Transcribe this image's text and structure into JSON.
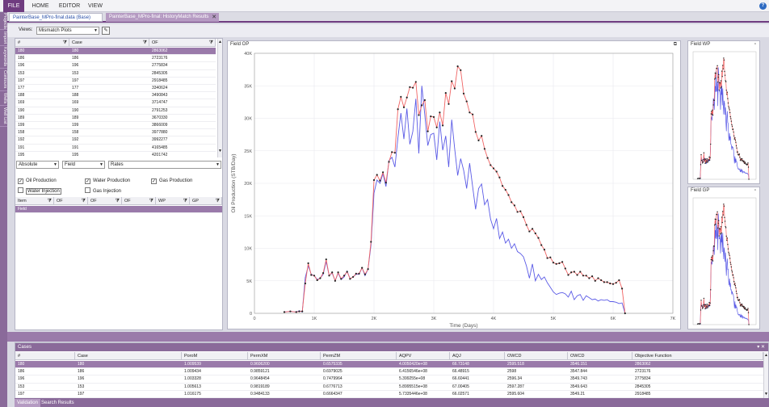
{
  "menu": {
    "items": [
      "FILE",
      "HOME",
      "EDITOR",
      "VIEW"
    ],
    "help_icon": "?"
  },
  "side_rail": {
    "tabs": [
      "Projects",
      "Import",
      "Keywords",
      "Contours",
      "Wells",
      "Well List"
    ]
  },
  "doc_tabs": [
    {
      "label": "PainterBase_MPro-final.data (Base)"
    },
    {
      "label": "PainterBase_MPro-final: HistoryMatch Results",
      "close": "✕"
    }
  ],
  "views": {
    "label": "Views:",
    "selected": "Mismatch Plots"
  },
  "case_grid": {
    "headers": [
      "#",
      "Case",
      "OF"
    ],
    "rows": [
      [
        "180",
        "180",
        "2863062"
      ],
      [
        "186",
        "186",
        "2723176"
      ],
      [
        "196",
        "196",
        "2775834"
      ],
      [
        "153",
        "153",
        "2845305"
      ],
      [
        "197",
        "197",
        "2918485"
      ],
      [
        "177",
        "177",
        "3340624"
      ],
      [
        "188",
        "188",
        "3490843"
      ],
      [
        "169",
        "169",
        "3714747"
      ],
      [
        "190",
        "190",
        "2791253"
      ],
      [
        "189",
        "189",
        "3670330"
      ],
      [
        "199",
        "199",
        "3866009"
      ],
      [
        "158",
        "158",
        "3977880"
      ],
      [
        "192",
        "192",
        "3992277"
      ],
      [
        "191",
        "191",
        "4165485"
      ],
      [
        "195",
        "195",
        "4201742"
      ]
    ]
  },
  "filters": {
    "mode": "Absolute",
    "level": "Field",
    "type": "Rates"
  },
  "checks": [
    {
      "label": "Oil Production",
      "checked": true
    },
    {
      "label": "Water Production",
      "checked": true
    },
    {
      "label": "Gas Production",
      "checked": true
    },
    {
      "label": "Water Injection",
      "checked": false
    },
    {
      "label": "Gas Injection",
      "checked": false
    }
  ],
  "item_grid": {
    "headers": [
      "Item",
      "OF",
      "OF",
      "OF",
      "WP",
      "GP"
    ],
    "rows": [
      [
        "Field"
      ]
    ]
  },
  "main_chart": {
    "title": "Field OP",
    "icon": "⧉"
  },
  "mini_chart_1": {
    "title": "Field WP",
    "icon": "▫"
  },
  "mini_chart_2": {
    "title": "Field GP",
    "icon": "▫"
  },
  "chart_data": {
    "type": "line",
    "title": "Field OP",
    "xlabel": "Time (Days)",
    "ylabel": "Oil Production (STB/Day)",
    "xlim": [
      0,
      7000
    ],
    "ylim": [
      0,
      40000
    ],
    "x_ticks": [
      "0",
      "1K",
      "2K",
      "3K",
      "4K",
      "5K",
      "6K",
      "7K"
    ],
    "y_ticks": [
      "0",
      "5K",
      "10K",
      "15K",
      "20K",
      "25K",
      "30K",
      "35K",
      "40K"
    ],
    "grid": true,
    "colors": {
      "historical": "#5a5ae6",
      "simulated": "#f06464",
      "markers": "#222222"
    },
    "series": [
      {
        "x": [
          500,
          600,
          700,
          750,
          800,
          850,
          900,
          950,
          1000,
          1050,
          1100,
          1150,
          1200,
          1250,
          1300,
          1350,
          1400,
          1450,
          1500,
          1550,
          1600,
          1650,
          1700,
          1750,
          1800,
          1850,
          1900,
          1950,
          2000,
          2050,
          2100,
          2150,
          2200,
          2250,
          2300,
          2350,
          2400,
          2450,
          2500,
          2550,
          2600,
          2650,
          2700,
          2750,
          2800,
          2850,
          2900,
          2950,
          3000,
          3050,
          3100,
          3150,
          3200,
          3250,
          3300,
          3350,
          3400,
          3450,
          3500,
          3550,
          3600,
          3650,
          3700,
          3750,
          3800,
          3850,
          3900,
          3950,
          4000,
          4050,
          4100,
          4150,
          4200,
          4250,
          4300,
          4350,
          4400,
          4450,
          4500,
          4550,
          4600,
          4650,
          4700,
          4750,
          4800,
          4850,
          4900,
          4950,
          5000,
          5050,
          5100,
          5150,
          5200,
          5250,
          5300,
          5350,
          5400,
          5450,
          5500,
          5550,
          5600,
          5650,
          5700,
          5750,
          5800,
          5850,
          5900,
          5950,
          6000,
          6050,
          6100,
          6150,
          6200
        ],
        "values": [
          200,
          300,
          200,
          400,
          200,
          5500,
          7300,
          6000,
          5800,
          5200,
          5400,
          6000,
          8000,
          5800,
          6200,
          5000,
          6200,
          5200,
          5600,
          6500,
          5300,
          5600,
          6000,
          6000,
          7000,
          5800,
          6800,
          10500,
          18500,
          20500,
          20000,
          21500,
          19500,
          23500,
          24000,
          22500,
          27000,
          30800,
          26800,
          31500,
          26000,
          28000,
          33000,
          24600,
          35000,
          30500,
          25800,
          27500,
          27700,
          23600,
          29500,
          25100,
          27300,
          22500,
          29800,
          25300,
          21200,
          23800,
          22000,
          19200,
          23100,
          19500,
          16000,
          19200,
          19900,
          16700,
          17500,
          14500,
          13000,
          14600,
          11500,
          12500,
          10800,
          11400,
          10000,
          10700,
          9500,
          9200,
          8700,
          7300,
          5400,
          7600,
          5000,
          6000,
          5200,
          5600,
          4700,
          4000,
          3300,
          2900,
          3100,
          3200,
          3000,
          2500,
          3400,
          2100,
          2700,
          2900,
          2000,
          2700,
          2400,
          2100,
          2200,
          1900,
          2100,
          2000,
          2100,
          1800,
          1800,
          1700,
          1500,
          1600,
          0
        ]
      },
      {
        "x": [
          500,
          600,
          700,
          750,
          800,
          850,
          900,
          950,
          1000,
          1050,
          1100,
          1150,
          1200,
          1250,
          1300,
          1350,
          1400,
          1450,
          1500,
          1550,
          1600,
          1650,
          1700,
          1750,
          1800,
          1850,
          1900,
          1950,
          2000,
          2050,
          2100,
          2150,
          2200,
          2250,
          2300,
          2350,
          2400,
          2450,
          2500,
          2550,
          2600,
          2650,
          2700,
          2750,
          2800,
          2850,
          2900,
          2950,
          3000,
          3050,
          3100,
          3150,
          3200,
          3250,
          3300,
          3350,
          3400,
          3450,
          3500,
          3550,
          3600,
          3650,
          3700,
          3750,
          3800,
          3850,
          3900,
          3950,
          4000,
          4050,
          4100,
          4150,
          4200,
          4250,
          4300,
          4350,
          4400,
          4450,
          4500,
          4550,
          4600,
          4650,
          4700,
          4750,
          4800,
          4850,
          4900,
          4950,
          5000,
          5050,
          5100,
          5150,
          5200,
          5250,
          5300,
          5350,
          5400,
          5450,
          5500,
          5550,
          5600,
          5650,
          5700,
          5750,
          5800,
          5850,
          5900,
          5950,
          6000,
          6050,
          6100,
          6150,
          6200
        ],
        "values": [
          200,
          300,
          200,
          300,
          300,
          4600,
          7700,
          5900,
          5800,
          5100,
          5400,
          6200,
          8300,
          5800,
          6300,
          5000,
          6300,
          5300,
          5800,
          6400,
          5300,
          5600,
          6100,
          6100,
          7000,
          6000,
          6800,
          11000,
          20500,
          21300,
          20400,
          21700,
          20100,
          23300,
          24800,
          24700,
          31400,
          33300,
          31700,
          33200,
          34800,
          34700,
          35600,
          30500,
          32000,
          32800,
          28000,
          30300,
          30200,
          28600,
          30900,
          28900,
          33900,
          32200,
          35700,
          34600,
          38000,
          37400,
          33800,
          32600,
          30900,
          30600,
          27900,
          26600,
          27300,
          25300,
          23900,
          22800,
          22300,
          21800,
          20900,
          19600,
          19000,
          18200,
          17100,
          16600,
          15600,
          15700,
          14800,
          13600,
          12600,
          13000,
          12300,
          11600,
          10500,
          9800,
          8500,
          8600,
          7800,
          7600,
          7700,
          7900,
          6900,
          5900,
          6300,
          6400,
          5900,
          6400,
          5800,
          5800,
          5400,
          5700,
          5000,
          5400,
          5100,
          4800,
          4800,
          4600,
          4500,
          4700,
          5100,
          3800,
          0
        ]
      }
    ]
  },
  "cases_panel": {
    "title": "Cases",
    "pin_icon": "▾ ✕",
    "headers": [
      "#",
      "Case",
      "PoroM",
      "PermXM",
      "PermZM",
      "AQPV",
      "AQJ",
      "OWCD",
      "OWCD",
      "Objective Function"
    ],
    "rows": [
      [
        "180",
        "180",
        "1.009539",
        "0.9606200",
        "0.6575335",
        "4.0050420e+08",
        "66.73148",
        "2595.518",
        "3546.151",
        "2863062"
      ],
      [
        "186",
        "186",
        "1.009434",
        "0.9859121",
        "0.6979025",
        "6.4156546e+08",
        "66.48915",
        "2598",
        "3547.844",
        "2723176"
      ],
      [
        "196",
        "196",
        "1.003328",
        "0.9648454",
        "0.7479964",
        "5.399255e+08",
        "66.60441",
        "2596.34",
        "3549.743",
        "2775834"
      ],
      [
        "153",
        "153",
        "1.005613",
        "0.9819189",
        "0.6776713",
        "5.8995515e+08",
        "67.00405",
        "2597.287",
        "3549.643",
        "2845305"
      ],
      [
        "197",
        "197",
        "1.016175",
        "0.9484133",
        "0.6664347",
        "5.7335446e+08",
        "66.02571",
        "2595.604",
        "3549.21",
        "2918485"
      ]
    ]
  },
  "bottom_tabs": [
    "Validation",
    "Search Results"
  ]
}
